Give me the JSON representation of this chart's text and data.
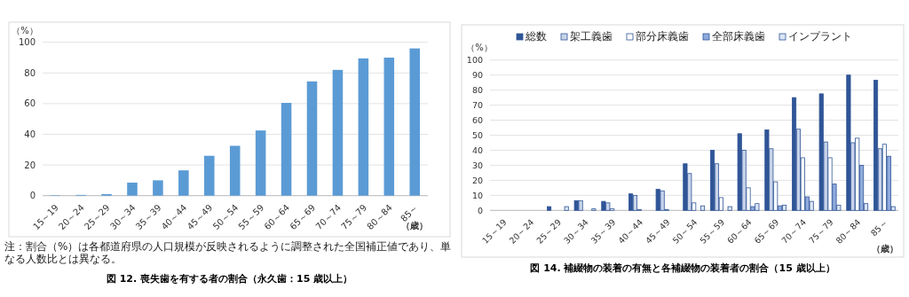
{
  "chart_data": [
    {
      "type": "bar",
      "title": "図 12. 喪失歯を有する者の割合（永久歯：15 歳以上）",
      "ylabel": "（%）",
      "xlabel": "（歳）",
      "annotations": [
        "注：割合（%）は各都道府県の人口規模が反映されるように調整された全国補正値であり、単なる人数比とは異なる。"
      ],
      "categories": [
        "15～19",
        "20～24",
        "25～29",
        "30～34",
        "35～39",
        "40～44",
        "45～49",
        "50～54",
        "55～59",
        "60～64",
        "65～69",
        "70～74",
        "75～79",
        "80～84",
        "85～"
      ],
      "values": [
        0.3,
        0.5,
        1,
        8.5,
        10,
        16.5,
        26,
        32.5,
        42.5,
        60.5,
        74.5,
        82,
        89.5,
        90,
        96
      ],
      "color": "#5b9bd5",
      "ylim": [
        0,
        100
      ],
      "yticks": [
        0,
        20,
        40,
        60,
        80,
        100
      ],
      "grid": "y"
    },
    {
      "type": "bar",
      "title": "図 14. 補綴物の装着の有無と各補綴物の装着者の割合（15 歳以上）",
      "ylabel": "（%）",
      "xlabel": "（歳）",
      "categories": [
        "15～19",
        "20～24",
        "25～29",
        "30～34",
        "35～39",
        "40～44",
        "45～49",
        "50～54",
        "55～59",
        "60～64",
        "65～69",
        "70～74",
        "75～79",
        "80～84",
        "85～"
      ],
      "series": [
        {
          "name": "総数",
          "color": "#2f5597",
          "values": [
            0,
            0,
            2.5,
            6.5,
            6,
            11,
            14,
            31,
            40,
            51,
            53.5,
            75,
            77.5,
            90,
            86.5
          ]
        },
        {
          "name": "架工義歯",
          "color": "#c9d4ea",
          "values": [
            0,
            0,
            0,
            6.5,
            5,
            10,
            13,
            24.5,
            31,
            40,
            41,
            54,
            45.5,
            45,
            41
          ]
        },
        {
          "name": "部分床義歯",
          "color": "#ffffff",
          "values": [
            0,
            0,
            0,
            0,
            1,
            0.5,
            0.5,
            5,
            8.5,
            15,
            19,
            35,
            35,
            48,
            44
          ]
        },
        {
          "name": "全部床義歯",
          "color": "#8faadc",
          "values": [
            0,
            0,
            0,
            0,
            0,
            0,
            null,
            null,
            null,
            2.5,
            3,
            9,
            17.5,
            30,
            36
          ]
        },
        {
          "name": "インプラント",
          "color": "#dce5f4",
          "values": [
            0,
            0,
            2.5,
            1,
            0,
            0,
            null,
            3,
            2.5,
            4.5,
            3.5,
            6,
            3.5,
            4.5,
            2.5
          ]
        }
      ],
      "ylim": [
        0,
        100
      ],
      "yticks": [
        0,
        10,
        20,
        30,
        40,
        50,
        60,
        70,
        80,
        90,
        100
      ],
      "grid": "y",
      "legend": "top"
    }
  ]
}
